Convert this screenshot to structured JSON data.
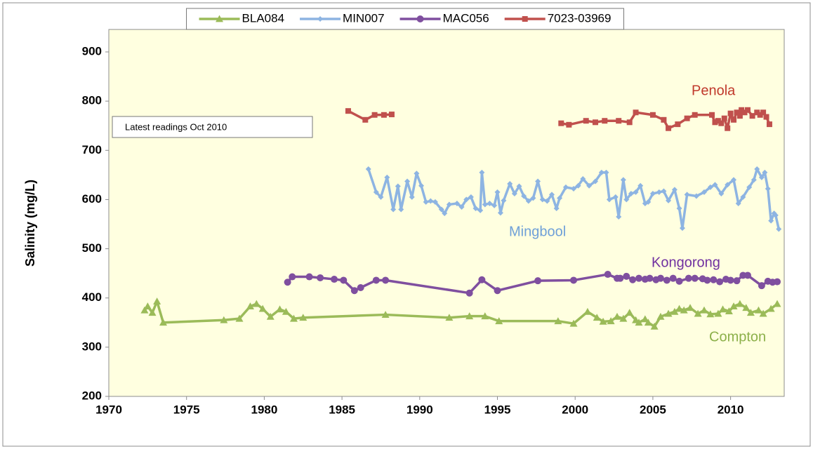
{
  "chart_data": {
    "type": "line",
    "y_label": "Salinity  (mg/L)",
    "annotations": [
      "Latest readings  Oct 2010",
      "Penola",
      "Mingbool",
      "Kongorong",
      "Compton"
    ],
    "xlim": [
      1970,
      2013.45
    ],
    "xticks": [
      1970,
      1975,
      1980,
      1985,
      1990,
      1995,
      2000,
      2005,
      2010
    ],
    "ylim": [
      200,
      900
    ],
    "yticks": [
      200,
      300,
      400,
      500,
      600,
      700,
      800,
      900
    ],
    "grid": false,
    "legend": "top",
    "series": [
      {
        "name": "BLA084",
        "color": "#9bbb59",
        "marker": "triangle",
        "x": [
          1972.3,
          1972.5,
          1972.8,
          1973.1,
          1973.5,
          1977.4,
          1978.4,
          1979.1,
          1979.5,
          1979.9,
          1980.4,
          1981.0,
          1981.4,
          1981.9,
          1982.5,
          1987.8,
          1991.9,
          1993.2,
          1994.2,
          1995.1,
          1998.9,
          1999.9,
          2000.8,
          2001.4,
          2001.8,
          2002.3,
          2002.7,
          2003.1,
          2003.5,
          2003.9,
          2004.1,
          2004.5,
          2004.7,
          2005.1,
          2005.5,
          2006.0,
          2006.4,
          2006.7,
          2007.0,
          2007.4,
          2007.9,
          2008.3,
          2008.7,
          2009.2,
          2009.5,
          2009.9,
          2010.2,
          2010.6,
          2011.0,
          2011.3,
          2011.8,
          2012.1,
          2012.6,
          2013.0
        ],
        "values": [
          375,
          383,
          370,
          393,
          350,
          355,
          358,
          383,
          388,
          378,
          362,
          377,
          372,
          358,
          360,
          366,
          360,
          363,
          363,
          353,
          353,
          348,
          372,
          360,
          352,
          353,
          362,
          358,
          370,
          355,
          350,
          357,
          350,
          342,
          362,
          368,
          372,
          378,
          375,
          380,
          368,
          375,
          367,
          368,
          377,
          373,
          383,
          388,
          380,
          370,
          375,
          368,
          378,
          388
        ]
      },
      {
        "name": "MIN007",
        "color": "#8db4e2",
        "marker": "diamond",
        "x": [
          1986.7,
          1987.2,
          1987.5,
          1987.9,
          1988.3,
          1988.6,
          1988.8,
          1989.2,
          1989.5,
          1989.8,
          1990.1,
          1990.4,
          1990.7,
          1991.0,
          1991.4,
          1991.6,
          1991.9,
          1992.4,
          1992.7,
          1993.0,
          1993.3,
          1993.6,
          1993.9,
          1994.0,
          1994.2,
          1994.5,
          1994.8,
          1995.0,
          1995.2,
          1995.4,
          1995.8,
          1996.1,
          1996.4,
          1996.7,
          1997.0,
          1997.3,
          1997.6,
          1997.9,
          1998.2,
          1998.5,
          1998.8,
          1999.0,
          1999.4,
          1999.9,
          2000.2,
          2000.5,
          2000.9,
          2001.3,
          2001.7,
          2002.0,
          2002.2,
          2002.6,
          2002.8,
          2003.1,
          2003.3,
          2003.6,
          2003.9,
          2004.2,
          2004.5,
          2004.7,
          2005.0,
          2005.4,
          2005.7,
          2006.0,
          2006.4,
          2006.7,
          2006.9,
          2007.2,
          2007.8,
          2008.3,
          2008.7,
          2009.0,
          2009.4,
          2009.8,
          2010.2,
          2010.5,
          2010.8,
          2011.2,
          2011.5,
          2011.7,
          2012.0,
          2012.2,
          2012.4,
          2012.6,
          2012.8,
          2012.9,
          2013.1
        ],
        "values": [
          662,
          615,
          605,
          645,
          580,
          627,
          580,
          637,
          605,
          653,
          628,
          595,
          597,
          595,
          580,
          572,
          590,
          592,
          585,
          600,
          605,
          582,
          578,
          655,
          590,
          592,
          588,
          615,
          573,
          598,
          632,
          612,
          627,
          607,
          597,
          603,
          637,
          600,
          597,
          610,
          582,
          603,
          625,
          622,
          628,
          642,
          628,
          637,
          655,
          655,
          600,
          605,
          565,
          640,
          600,
          612,
          615,
          628,
          592,
          595,
          612,
          615,
          617,
          598,
          620,
          582,
          542,
          610,
          607,
          615,
          625,
          630,
          612,
          630,
          640,
          592,
          605,
          625,
          640,
          662,
          645,
          655,
          622,
          557,
          572,
          568,
          540
        ]
      },
      {
        "name": "MAC056",
        "color": "#7f4f9f",
        "marker": "circle",
        "x": [
          1981.5,
          1981.8,
          1982.9,
          1983.6,
          1984.5,
          1985.1,
          1985.8,
          1986.2,
          1987.2,
          1987.8,
          1993.2,
          1994.0,
          1995.0,
          1997.6,
          1999.9,
          2002.1,
          2002.7,
          2002.9,
          2003.3,
          2003.7,
          2004.1,
          2004.5,
          2004.8,
          2005.2,
          2005.5,
          2005.9,
          2006.3,
          2006.7,
          2007.3,
          2007.7,
          2008.2,
          2008.5,
          2008.9,
          2009.3,
          2009.7,
          2010.0,
          2010.4,
          2010.8,
          2011.1,
          2012.0,
          2012.4,
          2012.7,
          2013.0
        ],
        "values": [
          432,
          443,
          443,
          441,
          438,
          436,
          415,
          421,
          436,
          436,
          410,
          437,
          415,
          435,
          436,
          448,
          440,
          440,
          444,
          437,
          440,
          438,
          440,
          437,
          440,
          436,
          440,
          434,
          440,
          440,
          439,
          436,
          437,
          433,
          438,
          436,
          435,
          446,
          446,
          425,
          434,
          432,
          433
        ]
      },
      {
        "name": "7023-03969",
        "color": "#c0504d",
        "marker": "square",
        "x": [
          1985.4,
          1986.5,
          1987.1,
          1987.7,
          1988.2,
          1993,
          1999.1,
          1999.6,
          2000.7,
          2001.3,
          2001.9,
          2002.8,
          2003.5,
          2003.9,
          2005.0,
          2005.7,
          2006.0,
          2006.6,
          2007.2,
          2007.7,
          2008.8,
          2009.0,
          2009.2,
          2009.4,
          2009.6,
          2009.8,
          2010.0,
          2010.2,
          2010.4,
          2010.6,
          2010.7,
          2010.9,
          2011.1,
          2011.4,
          2011.7,
          2011.9,
          2012.1,
          2012.3,
          2012.5
        ],
        "values": [
          780,
          762,
          772,
          772,
          773,
          null,
          755,
          752,
          760,
          757,
          760,
          760,
          757,
          777,
          772,
          762,
          745,
          753,
          765,
          772,
          772,
          757,
          760,
          755,
          765,
          745,
          775,
          762,
          777,
          770,
          782,
          777,
          782,
          770,
          777,
          772,
          777,
          768,
          753
        ]
      }
    ]
  }
}
